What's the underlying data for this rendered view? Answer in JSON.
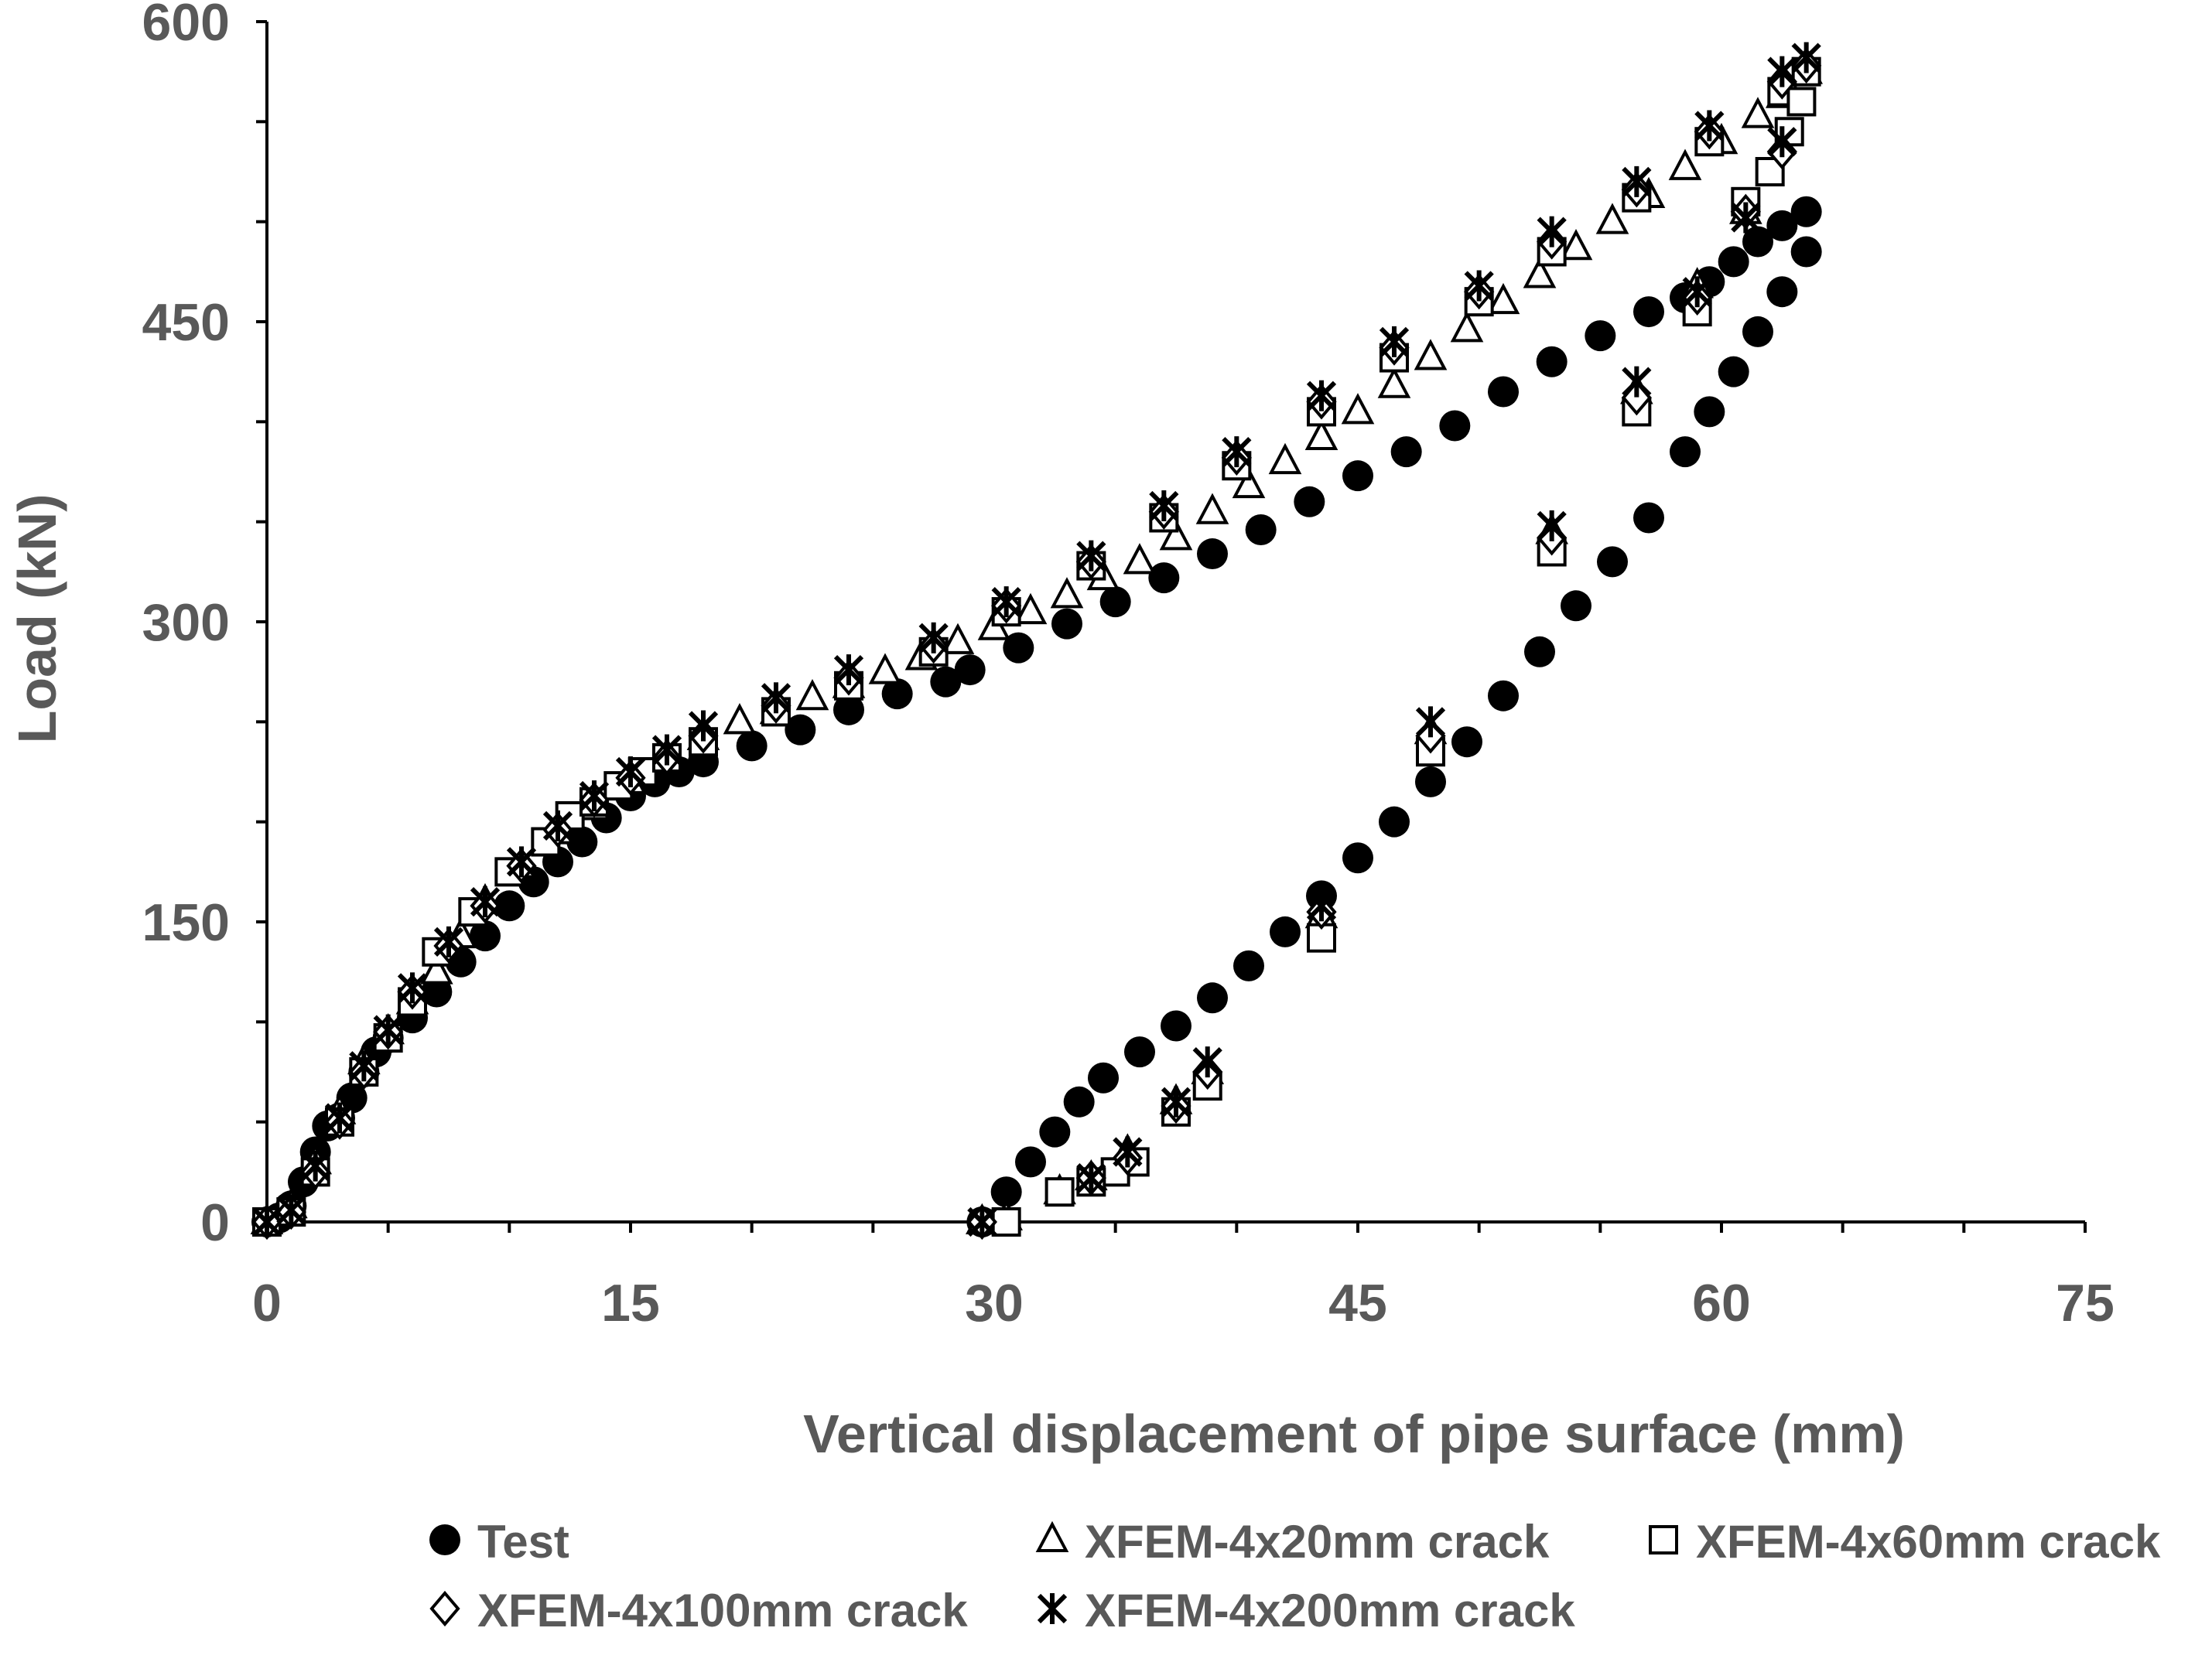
{
  "chart_data": {
    "type": "scatter",
    "xlabel": "Vertical displacement of pipe surface (mm)",
    "ylabel": "Load (kN)",
    "xlim": [
      0,
      75
    ],
    "ylim": [
      0,
      600
    ],
    "xticks": [
      "0",
      "15",
      "30",
      "45",
      "60",
      "75"
    ],
    "yticks": [
      "0",
      "150",
      "300",
      "450",
      "600"
    ],
    "grid": false,
    "legend_position": "bottom",
    "series": [
      {
        "name": "Test",
        "marker": "filled-circle",
        "x": [
          0,
          0.5,
          1,
          1.5,
          2,
          2.5,
          3,
          3.5,
          4,
          4.5,
          5,
          6,
          7,
          8,
          9,
          10,
          11,
          12,
          13,
          14,
          15,
          16,
          17,
          18,
          20,
          22,
          24,
          26,
          28,
          29,
          31,
          33,
          35,
          37,
          39,
          41,
          43,
          45,
          47,
          49,
          51,
          53,
          55,
          57,
          58.5,
          59.5,
          60.5,
          61.5,
          62.5,
          63.5,
          29.5,
          30.5,
          31.5,
          32.5,
          33.5,
          34.5,
          36,
          37.5,
          39,
          40.5,
          42,
          43.5,
          45,
          46.5,
          48,
          49.5,
          51,
          52.5,
          54,
          55.5,
          57,
          58.5,
          59.5,
          60.5,
          61.5,
          62.5,
          63.5
        ],
        "y": [
          0,
          2,
          8,
          20,
          35,
          48,
          52,
          62,
          75,
          85,
          92,
          102,
          115,
          130,
          143,
          158,
          170,
          180,
          190,
          202,
          213,
          220,
          225,
          230,
          238,
          246,
          256,
          264,
          270,
          276,
          287,
          299,
          310,
          322,
          334,
          346,
          360,
          373,
          385,
          398,
          415,
          430,
          443,
          455,
          462,
          470,
          480,
          490,
          498,
          505,
          0,
          15,
          30,
          45,
          60,
          72,
          85,
          98,
          112,
          128,
          145,
          163,
          182,
          200,
          220,
          240,
          263,
          285,
          308,
          330,
          352,
          385,
          405,
          425,
          445,
          465,
          485
        ]
      },
      {
        "name": "XFEM-4x20mm crack",
        "marker": "open-triangle",
        "x": [
          0,
          1,
          2,
          3,
          4,
          5,
          6,
          7,
          8,
          9,
          10.5,
          12,
          13.5,
          15,
          16.5,
          18,
          19.5,
          21,
          22.5,
          24,
          25.5,
          27,
          28.5,
          30,
          31.5,
          33,
          34.5,
          36,
          37.5,
          39,
          40.5,
          42,
          43.5,
          45,
          46.5,
          48,
          49.5,
          51,
          52.5,
          54,
          55.5,
          57,
          58.5,
          60,
          61.5,
          62.5,
          63.5,
          61,
          59,
          56.5,
          53,
          48,
          43.5,
          38.8,
          37.5,
          35.5,
          34,
          32.7,
          30.5,
          29.5
        ],
        "y": [
          0,
          8,
          30,
          55,
          80,
          95,
          110,
          125,
          143,
          160,
          178,
          195,
          207,
          220,
          233,
          242,
          250,
          255,
          262,
          268,
          275,
          282,
          290,
          297,
          305,
          313,
          322,
          330,
          342,
          355,
          368,
          380,
          392,
          405,
          418,
          432,
          446,
          460,
          473,
          487,
          500,
          513,
          527,
          540,
          553,
          563,
          575,
          505,
          468,
          415,
          345,
          245,
          153,
          75,
          60,
          35,
          22,
          15,
          2,
          0
        ]
      },
      {
        "name": "XFEM-4x60mm crack",
        "marker": "open-square",
        "x": [
          0,
          1,
          2,
          3,
          4,
          5,
          6,
          7,
          8.5,
          10,
          11.5,
          12.5,
          13.5,
          14.5,
          15.5,
          16.5,
          18,
          21,
          24,
          27.5,
          30.5,
          34,
          37,
          40,
          43.5,
          46.5,
          50,
          53,
          56.5,
          59.5,
          62.5,
          63.5,
          63.3,
          62.8,
          62,
          61,
          59,
          56.5,
          53,
          48,
          43.5,
          38.8,
          37.5,
          35.8,
          35,
          34,
          32.7,
          30.5
        ],
        "y": [
          0,
          5,
          25,
          50,
          75,
          92,
          110,
          135,
          155,
          175,
          190,
          203,
          210,
          218,
          225,
          232,
          240,
          255,
          268,
          285,
          305,
          328,
          352,
          378,
          405,
          432,
          460,
          485,
          512,
          540,
          565,
          575,
          560,
          545,
          525,
          510,
          455,
          405,
          335,
          235,
          142,
          68,
          55,
          30,
          25,
          20,
          15,
          0
        ]
      },
      {
        "name": "XFEM-4x100mm crack",
        "marker": "open-diamond",
        "x": [
          0,
          1,
          2,
          3,
          4,
          5,
          6,
          7.5,
          9,
          10.5,
          12,
          13.5,
          15,
          16.5,
          18,
          21,
          24,
          27.5,
          30.5,
          34,
          37,
          40,
          43.5,
          46.5,
          50,
          53,
          56.5,
          59.5,
          62.5,
          63.5,
          62.5,
          61,
          59,
          56.5,
          53,
          48,
          43.5,
          38.8,
          37.5,
          35.5,
          34,
          29.5
        ],
        "y": [
          0,
          5,
          25,
          50,
          75,
          95,
          115,
          138,
          158,
          178,
          196,
          211,
          222,
          232,
          243,
          258,
          272,
          288,
          308,
          330,
          355,
          382,
          410,
          437,
          465,
          490,
          516,
          545,
          570,
          578,
          535,
          505,
          462,
          412,
          342,
          243,
          155,
          75,
          58,
          32,
          22,
          0
        ]
      },
      {
        "name": "XFEM-4x200mm crack",
        "marker": "asterisk",
        "x": [
          0,
          1,
          2,
          3,
          4,
          5,
          6,
          7.5,
          9,
          10.5,
          12,
          13.5,
          15,
          16.5,
          18,
          21,
          24,
          27.5,
          30.5,
          34,
          37,
          40,
          43.5,
          46.5,
          50,
          53,
          56.5,
          59.5,
          62.5,
          63.5,
          62.5,
          61,
          59,
          56.5,
          53,
          48,
          43.5,
          38.8,
          37.5,
          35.5,
          34,
          29.5
        ],
        "y": [
          0,
          6,
          28,
          52,
          78,
          96,
          117,
          140,
          160,
          180,
          198,
          213,
          225,
          236,
          248,
          262,
          276,
          292,
          310,
          333,
          358,
          385,
          413,
          440,
          468,
          495,
          520,
          548,
          575,
          582,
          540,
          502,
          465,
          420,
          348,
          250,
          158,
          80,
          60,
          35,
          22,
          0
        ]
      }
    ]
  }
}
